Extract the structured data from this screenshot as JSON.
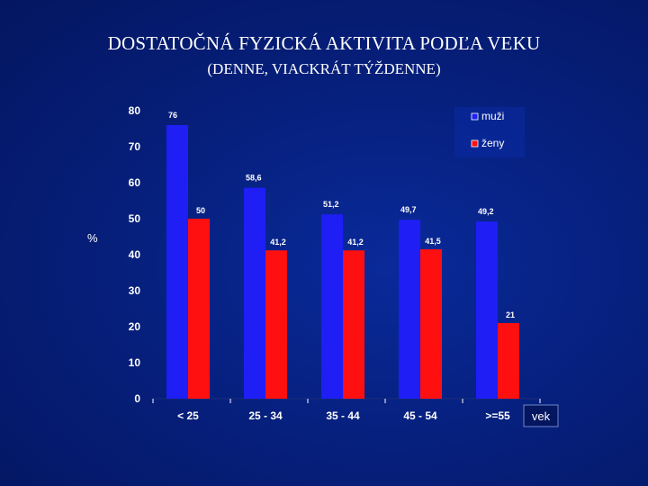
{
  "slide": {
    "title": "DOSTATOČNÁ FYZICKÁ AKTIVITA PODĽA VEKU",
    "subtitle": "(DENNE, VIACKRÁT TÝŽDENNE)"
  },
  "colors": {
    "background": "#06207e",
    "muzi": "#1e1ef5",
    "zeny": "#ff1010"
  },
  "chart_data": {
    "type": "bar",
    "categories": [
      "< 25",
      "25 - 34",
      "35 - 44",
      "45 - 54",
      ">=55"
    ],
    "series": [
      {
        "name": "muži",
        "values": [
          76,
          58.6,
          51.2,
          49.7,
          49.2
        ],
        "labels": [
          "76",
          "58,6",
          "51,2",
          "49,7",
          "49,2"
        ]
      },
      {
        "name": "ženy",
        "values": [
          50,
          41.2,
          41.2,
          41.5,
          21
        ],
        "labels": [
          "50",
          "41,2",
          "41,2",
          "41,5",
          "21"
        ]
      }
    ],
    "ylabel": "%",
    "xlabel": "vek",
    "ylim": [
      0,
      80
    ],
    "yticks": [
      0,
      10,
      20,
      30,
      40,
      50,
      60,
      70,
      80
    ],
    "grid": false,
    "legend": "top-right"
  }
}
